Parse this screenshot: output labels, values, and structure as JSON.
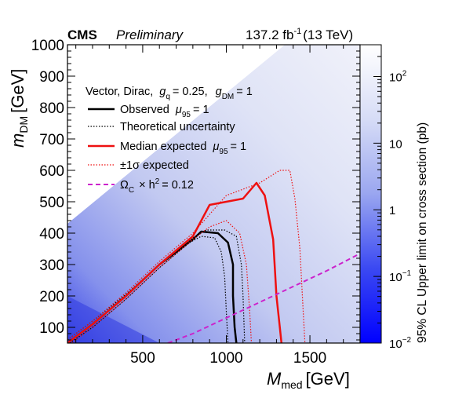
{
  "header": {
    "experiment": "CMS",
    "status": "Preliminary",
    "lumi_value": "137.2 fb",
    "lumi_exp": "-1",
    "energy": "(13 TeV)"
  },
  "chart_data": {
    "type": "heatmap",
    "xlabel_main": "M",
    "xlabel_sub": "med",
    "xlabel_unit": "[GeV]",
    "ylabel_main": "m",
    "ylabel_sub": "DM",
    "ylabel_unit": "[GeV]",
    "zlabel": "95% CL Upper limit on cross section (pb)",
    "xlim": [
      50,
      1800
    ],
    "ylim": [
      50,
      1000
    ],
    "x_ticks": [
      "500",
      "1000",
      "1500"
    ],
    "x_tick_values": [
      500,
      1000,
      1500
    ],
    "y_ticks": [
      "100",
      "200",
      "300",
      "400",
      "500",
      "600",
      "700",
      "800",
      "900",
      "1000"
    ],
    "y_tick_values": [
      100,
      200,
      300,
      400,
      500,
      600,
      700,
      800,
      900,
      1000
    ],
    "z_log": true,
    "zlim": [
      0.01,
      300
    ],
    "z_ticks": [
      {
        "base": "10",
        "exp": "2",
        "value": 100
      },
      {
        "base": "10",
        "exp": "",
        "value": 10
      },
      {
        "base": "1",
        "exp": "",
        "value": 1
      },
      {
        "base": "10",
        "exp": "−1",
        "value": 0.1
      },
      {
        "base": "10",
        "exp": "−2",
        "value": 0.01
      }
    ],
    "legend": {
      "title": {
        "text1": "Vector, Dirac,",
        "g": "g",
        "q": "q",
        "gq_val": "= 0.25,",
        "gdm": "g",
        "dm": "DM",
        "gdm_val": "= 1"
      },
      "entries": [
        {
          "id": "observed",
          "label": "Observed",
          "mu": "μ",
          "mu_sub": "95",
          "mu_val": "= 1",
          "color": "#000000",
          "dash": "solid",
          "width": 2.5
        },
        {
          "id": "theory",
          "label": "Theoretical uncertainty",
          "color": "#000000",
          "dash": "dotted",
          "width": 1.2
        },
        {
          "id": "median",
          "label": "Median expected",
          "mu": "μ",
          "mu_sub": "95",
          "mu_val": "= 1",
          "color": "#ee1111",
          "dash": "solid",
          "width": 2.5
        },
        {
          "id": "sigma",
          "label": "±1σ expected",
          "color": "#ee1111",
          "dash": "dotted",
          "width": 1.2
        },
        {
          "id": "relic",
          "label": "Ω",
          "sub": "C",
          "tail": "× h",
          "sup": "2",
          "tail2": "= 0.12",
          "color": "#cc22cc",
          "dash": "dashed",
          "width": 2
        }
      ]
    },
    "series": [
      {
        "name": "Observed",
        "color": "#000000",
        "x": [
          50,
          200,
          400,
          600,
          800,
          850,
          950,
          1010,
          1040,
          1040,
          1050,
          1060
        ],
        "y": [
          50,
          110,
          200,
          300,
          380,
          405,
          400,
          370,
          300,
          200,
          100,
          50
        ]
      },
      {
        "name": "Theoretical uncertainty (upper)",
        "color": "#000000",
        "x": [
          50,
          200,
          400,
          600,
          800,
          880,
          990,
          1060,
          1090,
          1100,
          1110
        ],
        "y": [
          60,
          120,
          205,
          300,
          385,
          410,
          410,
          390,
          300,
          200,
          50
        ]
      },
      {
        "name": "Theoretical uncertainty (lower)",
        "color": "#000000",
        "x": [
          50,
          200,
          400,
          600,
          780,
          850,
          930,
          970,
          990,
          1000,
          1010
        ],
        "y": [
          45,
          100,
          190,
          290,
          370,
          390,
          385,
          340,
          260,
          150,
          50
        ]
      },
      {
        "name": "Median expected",
        "color": "#ee1111",
        "x": [
          50,
          200,
          400,
          600,
          800,
          900,
          1000,
          1100,
          1180,
          1230,
          1280,
          1300,
          1320,
          1330
        ],
        "y": [
          50,
          110,
          200,
          300,
          390,
          490,
          500,
          510,
          560,
          520,
          380,
          200,
          100,
          50
        ]
      },
      {
        "name": "±1σ expected (upper)",
        "color": "#ee1111",
        "x": [
          50,
          200,
          400,
          600,
          800,
          1000,
          1200,
          1320,
          1380,
          1410,
          1440,
          1460,
          1470
        ],
        "y": [
          60,
          120,
          210,
          310,
          400,
          520,
          560,
          600,
          600,
          510,
          350,
          150,
          50
        ]
      },
      {
        "name": "±1σ expected (lower)",
        "color": "#ee1111",
        "x": [
          50,
          200,
          400,
          600,
          800,
          900,
          1000,
          1080,
          1120,
          1140,
          1150
        ],
        "y": [
          40,
          100,
          190,
          290,
          380,
          420,
          440,
          400,
          300,
          150,
          50
        ]
      },
      {
        "name": "Ω_C × h² = 0.12",
        "color": "#cc22cc",
        "x": [
          650,
          800,
          1000,
          1200,
          1400,
          1600,
          1800
        ],
        "y": [
          50,
          80,
          130,
          180,
          230,
          280,
          335
        ]
      }
    ]
  }
}
